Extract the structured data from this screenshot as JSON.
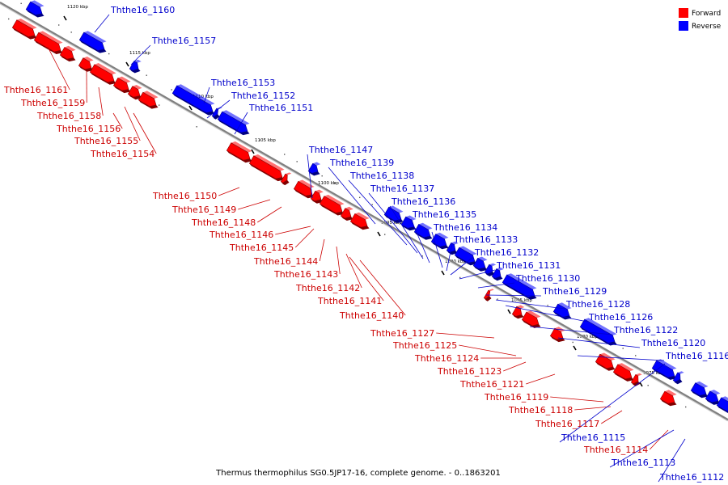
{
  "caption": "Thermus thermophilus SG0.5JP17-16, complete genome. - 0..1863201",
  "legend": {
    "placement": "top-right",
    "items": [
      {
        "label": "Forward",
        "color": "#ff0000"
      },
      {
        "label": "Reverse",
        "color": "#0000ff"
      }
    ]
  },
  "colors": {
    "forward": "#ff0000",
    "reverse": "#0000ff",
    "forward_label": "#cc0000",
    "reverse_label": "#0000cc",
    "backbone": "#808080"
  },
  "scale_labels": [
    "1120 kbp",
    "1115 kbp",
    "1110 kbp",
    "1105 kbp",
    "1100 kbp",
    "1095 kbp",
    "1090 kbp",
    "1085 kbp",
    "1080 kbp",
    "1075 kbp"
  ],
  "forward_genes": [
    "Ththe16_1161",
    "Ththe16_1159",
    "Ththe16_1158",
    "Ththe16_1156",
    "Ththe16_1155",
    "Ththe16_1154",
    "Ththe16_1150",
    "Ththe16_1149",
    "Ththe16_1148",
    "Ththe16_1146",
    "Ththe16_1145",
    "Ththe16_1144",
    "Ththe16_1143",
    "Ththe16_1142",
    "Ththe16_1141",
    "Ththe16_1140",
    "Ththe16_1127",
    "Ththe16_1125",
    "Ththe16_1124",
    "Ththe16_1123",
    "Ththe16_1121",
    "Ththe16_1119",
    "Ththe16_1118",
    "Ththe16_1117",
    "Ththe16_1114"
  ],
  "reverse_genes": [
    "Ththe16_1160",
    "Ththe16_1157",
    "Ththe16_1153",
    "Ththe16_1152",
    "Ththe16_1151",
    "Ththe16_1147",
    "Ththe16_1139",
    "Ththe16_1138",
    "Ththe16_1137",
    "Ththe16_1136",
    "Ththe16_1135",
    "Ththe16_1134",
    "Ththe16_1133",
    "Ththe16_1132",
    "Ththe16_1131",
    "Ththe16_1130",
    "Ththe16_1129",
    "Ththe16_1128",
    "Ththe16_1126",
    "Ththe16_1122",
    "Ththe16_1120",
    "Ththe16_1116",
    "Ththe16_1115",
    "Ththe16_1113",
    "Ththe16_1112"
  ]
}
